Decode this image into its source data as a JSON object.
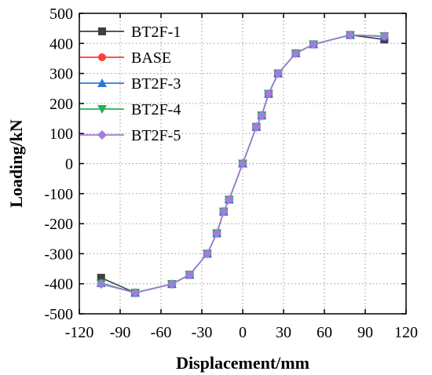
{
  "chart_data": {
    "type": "line",
    "title": "",
    "xlabel": "Displacement/mm",
    "ylabel": "Loading/kN",
    "xlim": [
      -120,
      120
    ],
    "ylim": [
      -500,
      500
    ],
    "xticks": [
      -120,
      -90,
      -60,
      -30,
      0,
      30,
      60,
      90,
      120
    ],
    "yticks": [
      -500,
      -400,
      -300,
      -200,
      -100,
      0,
      100,
      200,
      300,
      400,
      500
    ],
    "grid": true,
    "legend_position": "top-left",
    "series": [
      {
        "name": "BT2F-1",
        "color": "#3f3f3f",
        "marker": "square",
        "points": [
          [
            -104,
            -380
          ],
          [
            -79,
            -430
          ],
          [
            -52,
            -401
          ],
          [
            -39,
            -370
          ],
          [
            -26,
            -300
          ],
          [
            -19,
            -232
          ],
          [
            -14,
            -160
          ],
          [
            -10,
            -120
          ],
          [
            0,
            0
          ],
          [
            10,
            122
          ],
          [
            14,
            160
          ],
          [
            19,
            232
          ],
          [
            26,
            300
          ],
          [
            39,
            367
          ],
          [
            52,
            397
          ],
          [
            79,
            428
          ],
          [
            104,
            413
          ]
        ]
      },
      {
        "name": "BASE",
        "color": "#ff3b3b",
        "marker": "circle",
        "points": [
          [
            -104,
            -400
          ],
          [
            -79,
            -430
          ],
          [
            -52,
            -401
          ],
          [
            -39,
            -370
          ],
          [
            -26,
            -300
          ],
          [
            -19,
            -232
          ],
          [
            -14,
            -160
          ],
          [
            -10,
            -120
          ],
          [
            0,
            0
          ],
          [
            10,
            122
          ],
          [
            14,
            160
          ],
          [
            19,
            232
          ],
          [
            26,
            300
          ],
          [
            39,
            367
          ],
          [
            52,
            397
          ],
          [
            79,
            428
          ],
          [
            104,
            424
          ]
        ]
      },
      {
        "name": "BT2F-3",
        "color": "#2a7bd9",
        "marker": "triangle-up",
        "points": [
          [
            -104,
            -398
          ],
          [
            -79,
            -430
          ],
          [
            -52,
            -401
          ],
          [
            -39,
            -370
          ],
          [
            -26,
            -300
          ],
          [
            -19,
            -232
          ],
          [
            -14,
            -160
          ],
          [
            -10,
            -120
          ],
          [
            0,
            0
          ],
          [
            10,
            122
          ],
          [
            14,
            160
          ],
          [
            19,
            232
          ],
          [
            26,
            300
          ],
          [
            39,
            367
          ],
          [
            52,
            397
          ],
          [
            79,
            428
          ],
          [
            104,
            423
          ]
        ]
      },
      {
        "name": "BT2F-4",
        "color": "#22b35a",
        "marker": "triangle-down",
        "points": [
          [
            -104,
            -399
          ],
          [
            -79,
            -430
          ],
          [
            -52,
            -401
          ],
          [
            -39,
            -370
          ],
          [
            -26,
            -300
          ],
          [
            -19,
            -232
          ],
          [
            -14,
            -160
          ],
          [
            -10,
            -120
          ],
          [
            0,
            0
          ],
          [
            10,
            122
          ],
          [
            14,
            160
          ],
          [
            19,
            232
          ],
          [
            26,
            300
          ],
          [
            39,
            367
          ],
          [
            52,
            397
          ],
          [
            79,
            428
          ],
          [
            104,
            424
          ]
        ]
      },
      {
        "name": "BT2F-5",
        "color": "#a57bd9",
        "marker": "diamond",
        "points": [
          [
            -104,
            -401
          ],
          [
            -79,
            -430
          ],
          [
            -52,
            -401
          ],
          [
            -39,
            -370
          ],
          [
            -26,
            -300
          ],
          [
            -19,
            -232
          ],
          [
            -14,
            -160
          ],
          [
            -10,
            -120
          ],
          [
            0,
            0
          ],
          [
            10,
            122
          ],
          [
            14,
            160
          ],
          [
            19,
            232
          ],
          [
            26,
            300
          ],
          [
            39,
            367
          ],
          [
            52,
            397
          ],
          [
            79,
            428
          ],
          [
            104,
            424
          ]
        ]
      }
    ]
  }
}
